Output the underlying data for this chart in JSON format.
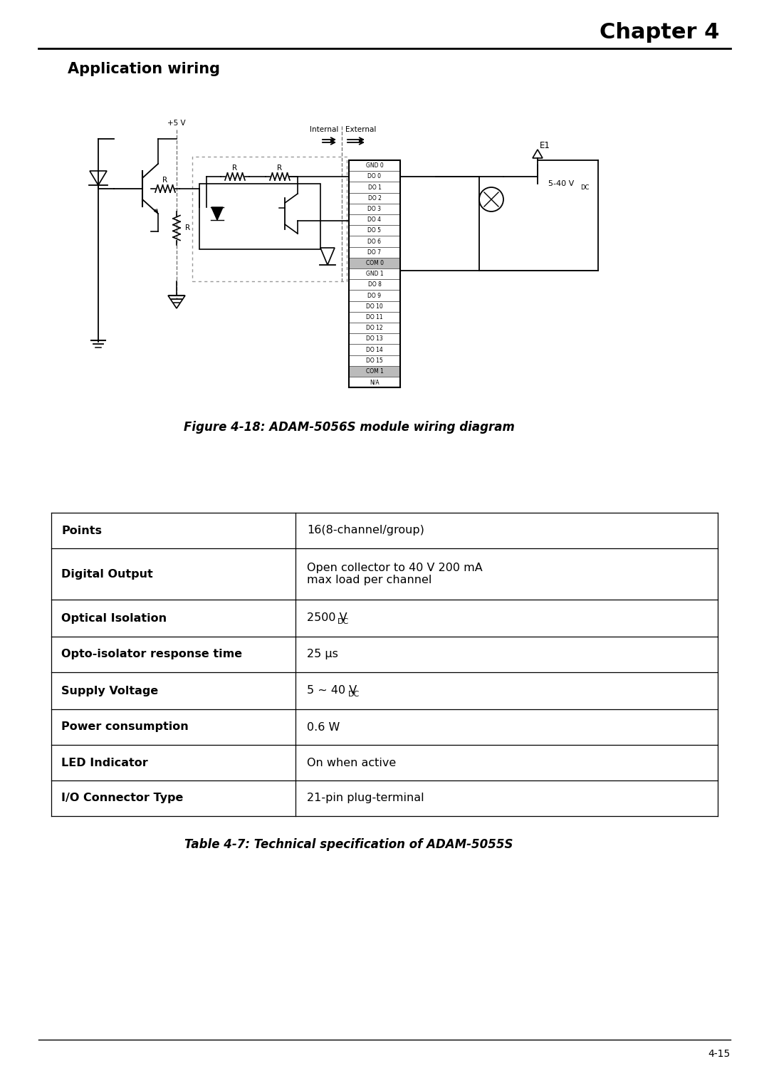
{
  "chapter_text": "Chapter 4",
  "section_text": "Application wiring",
  "figure_caption": "Figure 4-18: ADAM-5056S module wiring diagram",
  "table_caption": "Table 4-7: Technical specification of ADAM-5055S",
  "table_rows": [
    {
      "label": "Points",
      "bold": true,
      "value": "16(8-channel/group)",
      "value_sub": ""
    },
    {
      "label": "Digital Output",
      "bold": true,
      "value": "Open collector to 40 V 200 mA\nmax load per channel",
      "value_sub": ""
    },
    {
      "label": "Optical Isolation",
      "bold": true,
      "value": "2500 V",
      "value_sub": "DC"
    },
    {
      "label": "Opto-isolator response time",
      "bold": true,
      "value": "25 μs",
      "value_sub": ""
    },
    {
      "label": "Supply Voltage",
      "bold": true,
      "value": "5 ~ 40 V",
      "value_sub": "DC"
    },
    {
      "label": "Power consumption",
      "bold": true,
      "value": "0.6 W",
      "value_sub": ""
    },
    {
      "label": "LED Indicator",
      "bold": true,
      "value": "On when active",
      "value_sub": ""
    },
    {
      "label": "I/O Connector Type",
      "bold": true,
      "value": "21-pin plug-terminal",
      "value_sub": ""
    }
  ],
  "connector_labels": [
    "GND 0",
    "DO 0",
    "DO 1",
    "DO 2",
    "DO 3",
    "DO 4",
    "DO 5",
    "DO 6",
    "DO 7",
    "COM 0",
    "GND 1",
    "DO 8",
    "DO 9",
    "DO 10",
    "DO 11",
    "DO 12",
    "DO 13",
    "DO 14",
    "DO 15",
    "COM 1",
    "N/A"
  ],
  "page_number": "4-15",
  "bg_color": "#ffffff",
  "text_color": "#000000"
}
